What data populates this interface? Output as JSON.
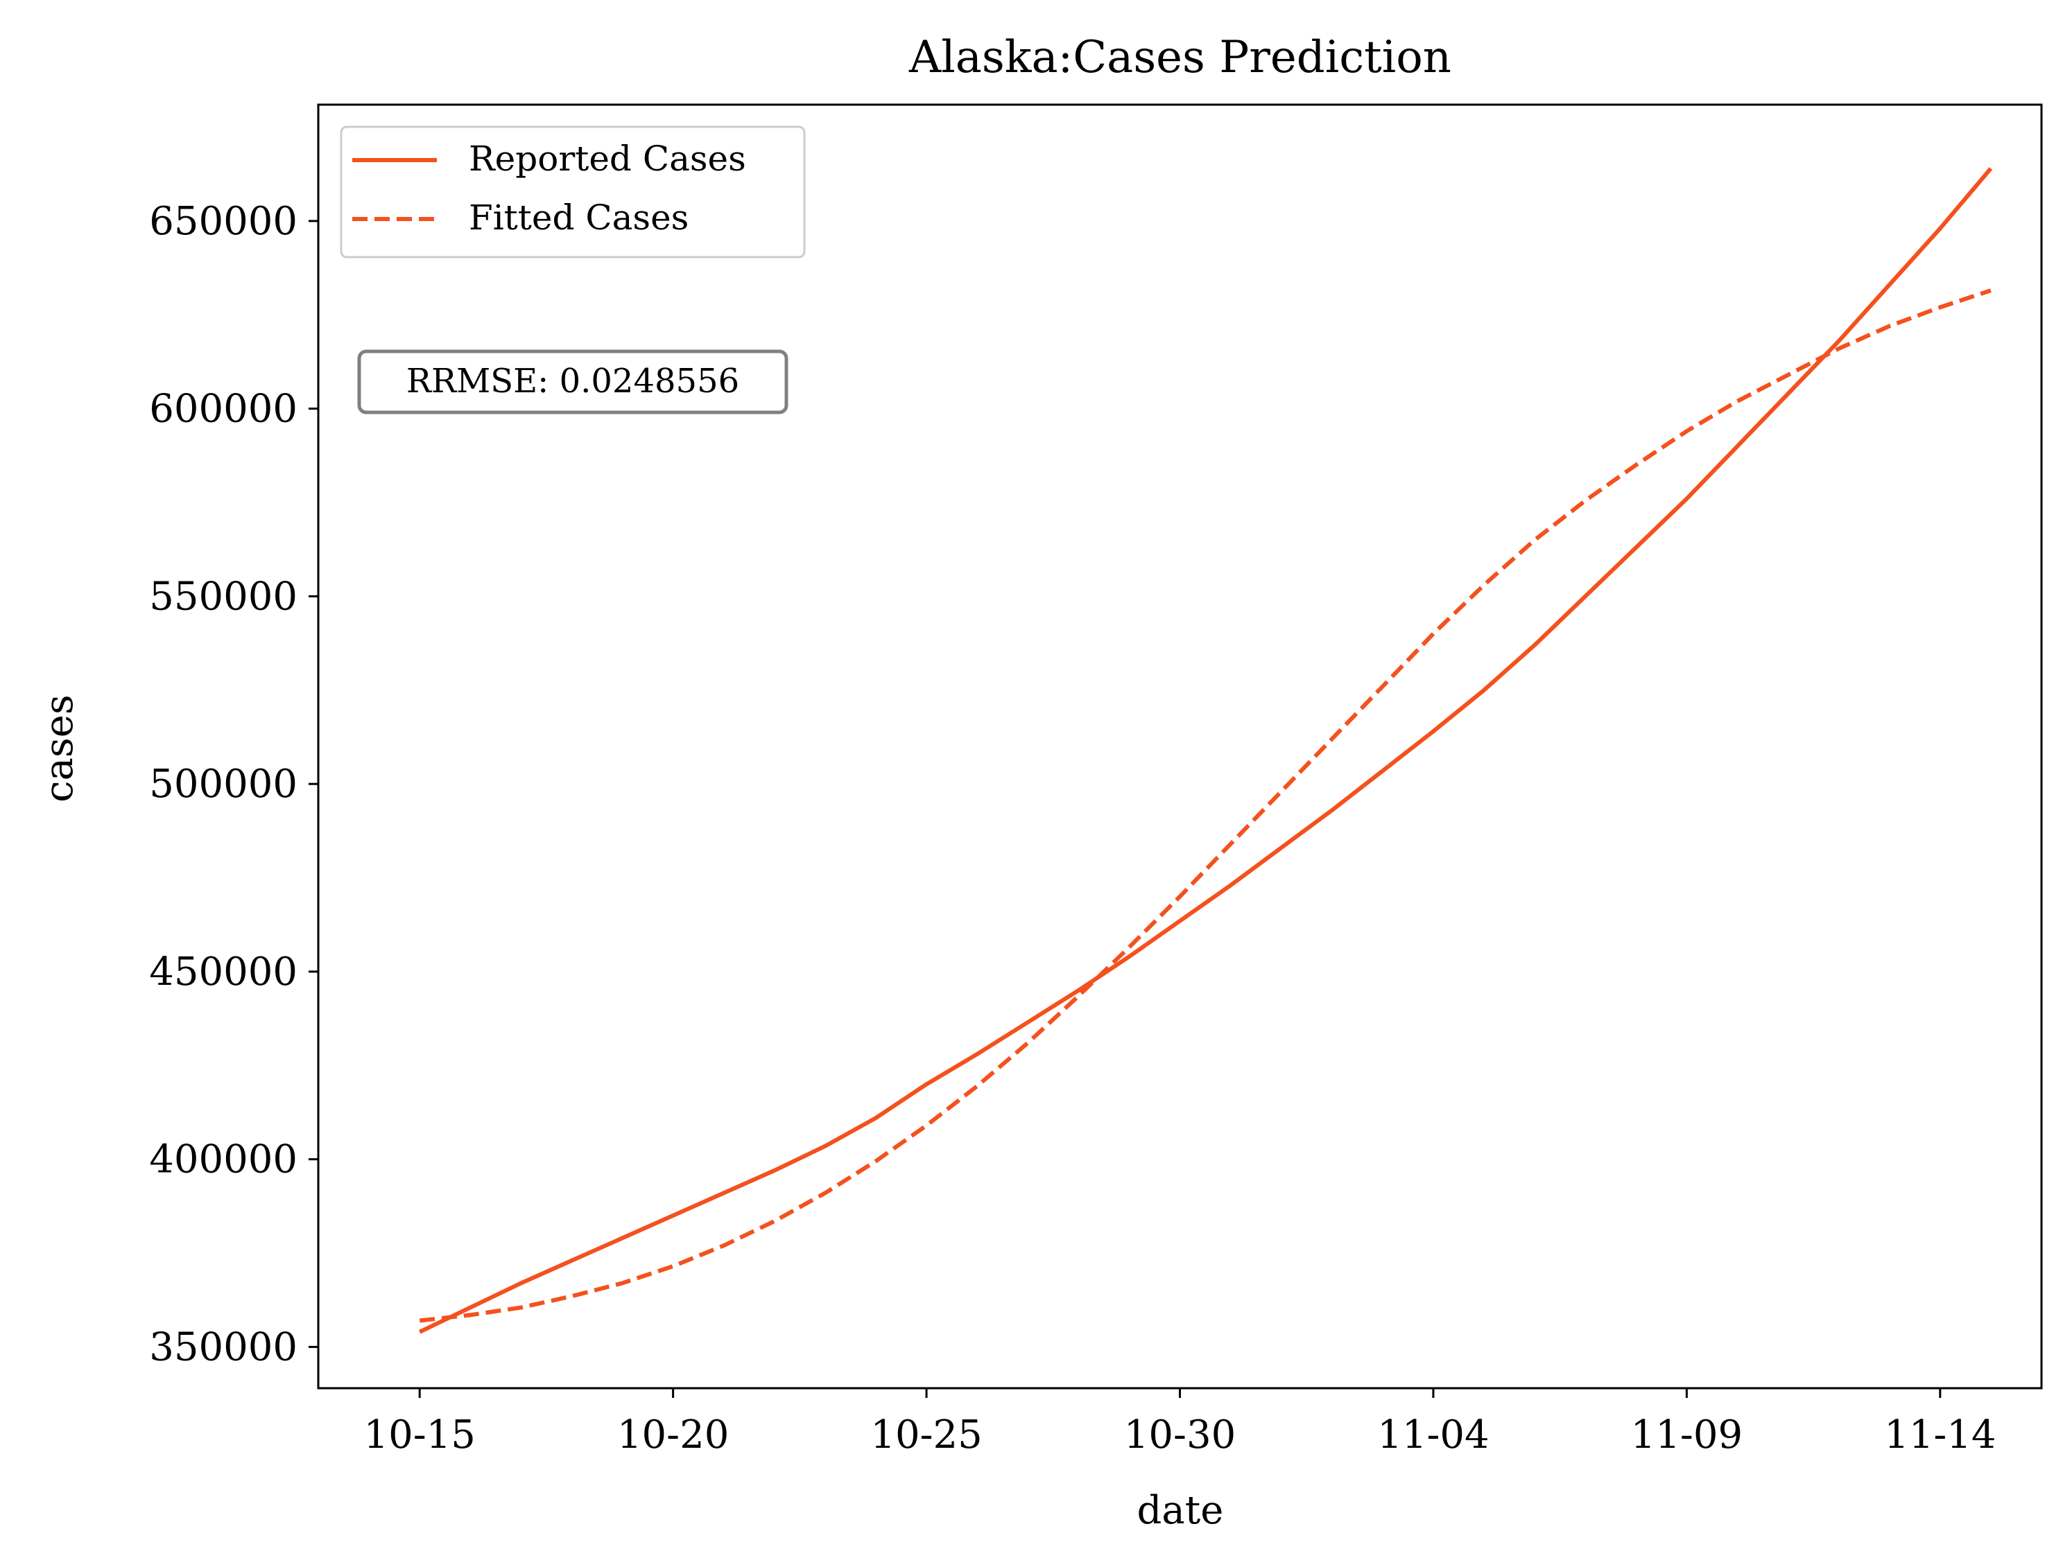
{
  "chart_data": {
    "type": "line",
    "title": "Alaska:Cases Prediction",
    "xlabel": "date",
    "ylabel": "cases",
    "x_ticks": [
      "10-15",
      "10-20",
      "10-25",
      "10-30",
      "11-04",
      "11-09",
      "11-14"
    ],
    "y_ticks": [
      350000,
      400000,
      450000,
      500000,
      550000,
      600000,
      650000
    ],
    "xlim": [
      "10-13",
      "11-16"
    ],
    "ylim": [
      339000,
      681000
    ],
    "grid": false,
    "legend_position": "top-left",
    "annotation": "RRMSE: 0.0248556",
    "series": [
      {
        "name": "Reported Cases",
        "style": "solid",
        "color": "#f4511e",
        "x": [
          "10-15",
          "10-16",
          "10-17",
          "10-18",
          "10-19",
          "10-20",
          "10-21",
          "10-22",
          "10-23",
          "10-24",
          "10-25",
          "10-26",
          "10-27",
          "10-28",
          "10-29",
          "10-30",
          "10-31",
          "11-01",
          "11-02",
          "11-03",
          "11-04",
          "11-05",
          "11-06",
          "11-07",
          "11-08",
          "11-09",
          "11-10",
          "11-11",
          "11-12",
          "11-13",
          "11-14",
          "11-15"
        ],
        "values": [
          354000,
          360500,
          367000,
          373000,
          379000,
          385000,
          391000,
          397000,
          403500,
          411000,
          420000,
          428000,
          436500,
          445000,
          454000,
          463500,
          473000,
          483000,
          493000,
          503500,
          514000,
          525000,
          537000,
          550000,
          563000,
          576000,
          590000,
          604000,
          618000,
          633000,
          648000,
          664000
        ]
      },
      {
        "name": "Fitted Cases",
        "style": "dashed",
        "color": "#f4511e",
        "x": [
          "10-15",
          "10-16",
          "10-17",
          "10-18",
          "10-19",
          "10-20",
          "10-21",
          "10-22",
          "10-23",
          "10-24",
          "10-25",
          "10-26",
          "10-27",
          "10-28",
          "10-29",
          "10-30",
          "10-31",
          "11-01",
          "11-02",
          "11-03",
          "11-04",
          "11-05",
          "11-06",
          "11-07",
          "11-08",
          "11-09",
          "11-10",
          "11-11",
          "11-12",
          "11-13",
          "11-14",
          "11-15"
        ],
        "values": [
          357000,
          358500,
          360500,
          363500,
          367000,
          371500,
          377000,
          383500,
          391000,
          399500,
          409000,
          419500,
          431000,
          443500,
          456500,
          470000,
          484000,
          498000,
          512000,
          526000,
          540000,
          553000,
          565000,
          575500,
          585000,
          594000,
          602000,
          609000,
          616000,
          622000,
          627000,
          631500
        ]
      }
    ]
  }
}
